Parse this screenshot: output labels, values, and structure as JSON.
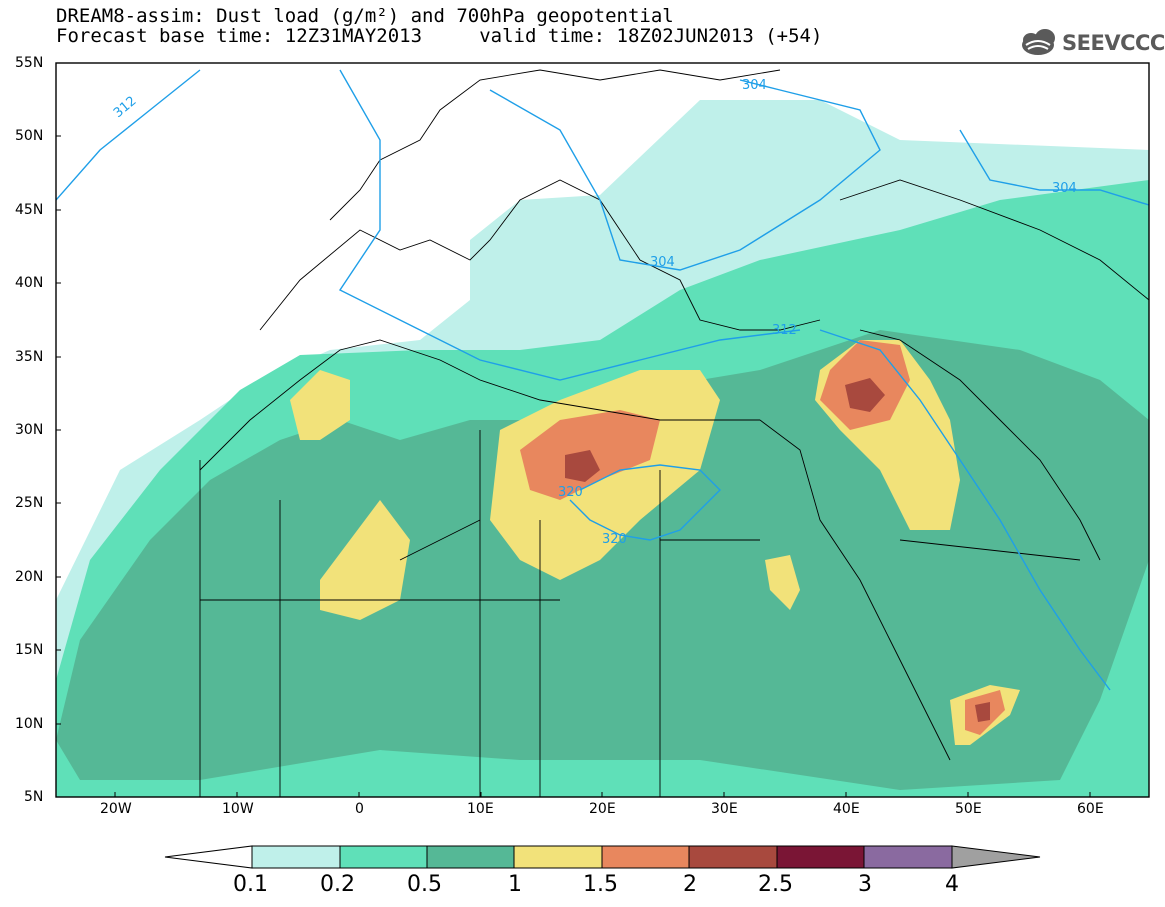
{
  "title": {
    "line1": "DREAM8-assim: Dust load (g/m²) and 700hPa geopotential",
    "line2": "Forecast base time: 12Z31MAY2013     valid time: 18Z02JUN2013 (+54)"
  },
  "logo": {
    "text": "SEEVCCC",
    "icon": "cloud-logo-icon"
  },
  "axes": {
    "lat_labels": [
      "55N",
      "50N",
      "45N",
      "40N",
      "35N",
      "30N",
      "25N",
      "20N",
      "15N",
      "10N",
      "5N"
    ],
    "lon_labels": [
      "20W",
      "10W",
      "0",
      "10E",
      "20E",
      "30E",
      "40E",
      "50E",
      "60E"
    ]
  },
  "contours": {
    "geopotential_labels": [
      "312",
      "304",
      "304",
      "304",
      "312",
      "320",
      "320"
    ]
  },
  "colorbar": {
    "labels": [
      "0.1",
      "0.2",
      "0.5",
      "1",
      "1.5",
      "2",
      "2.5",
      "3",
      "4"
    ],
    "colors": [
      "#ffffff",
      "#bff0ea",
      "#5fe0b8",
      "#55b896",
      "#f2e27a",
      "#e8875e",
      "#a8493e",
      "#7a1535",
      "#8a6aa0",
      "#a0a0a0"
    ]
  },
  "colors": {
    "dust_01": "#bff0ea",
    "dust_02": "#5fe0b8",
    "dust_05": "#55b896",
    "dust_1": "#f2e27a",
    "dust_15": "#e8875e",
    "dust_2": "#a8493e",
    "contour": "#1f9fe8"
  }
}
